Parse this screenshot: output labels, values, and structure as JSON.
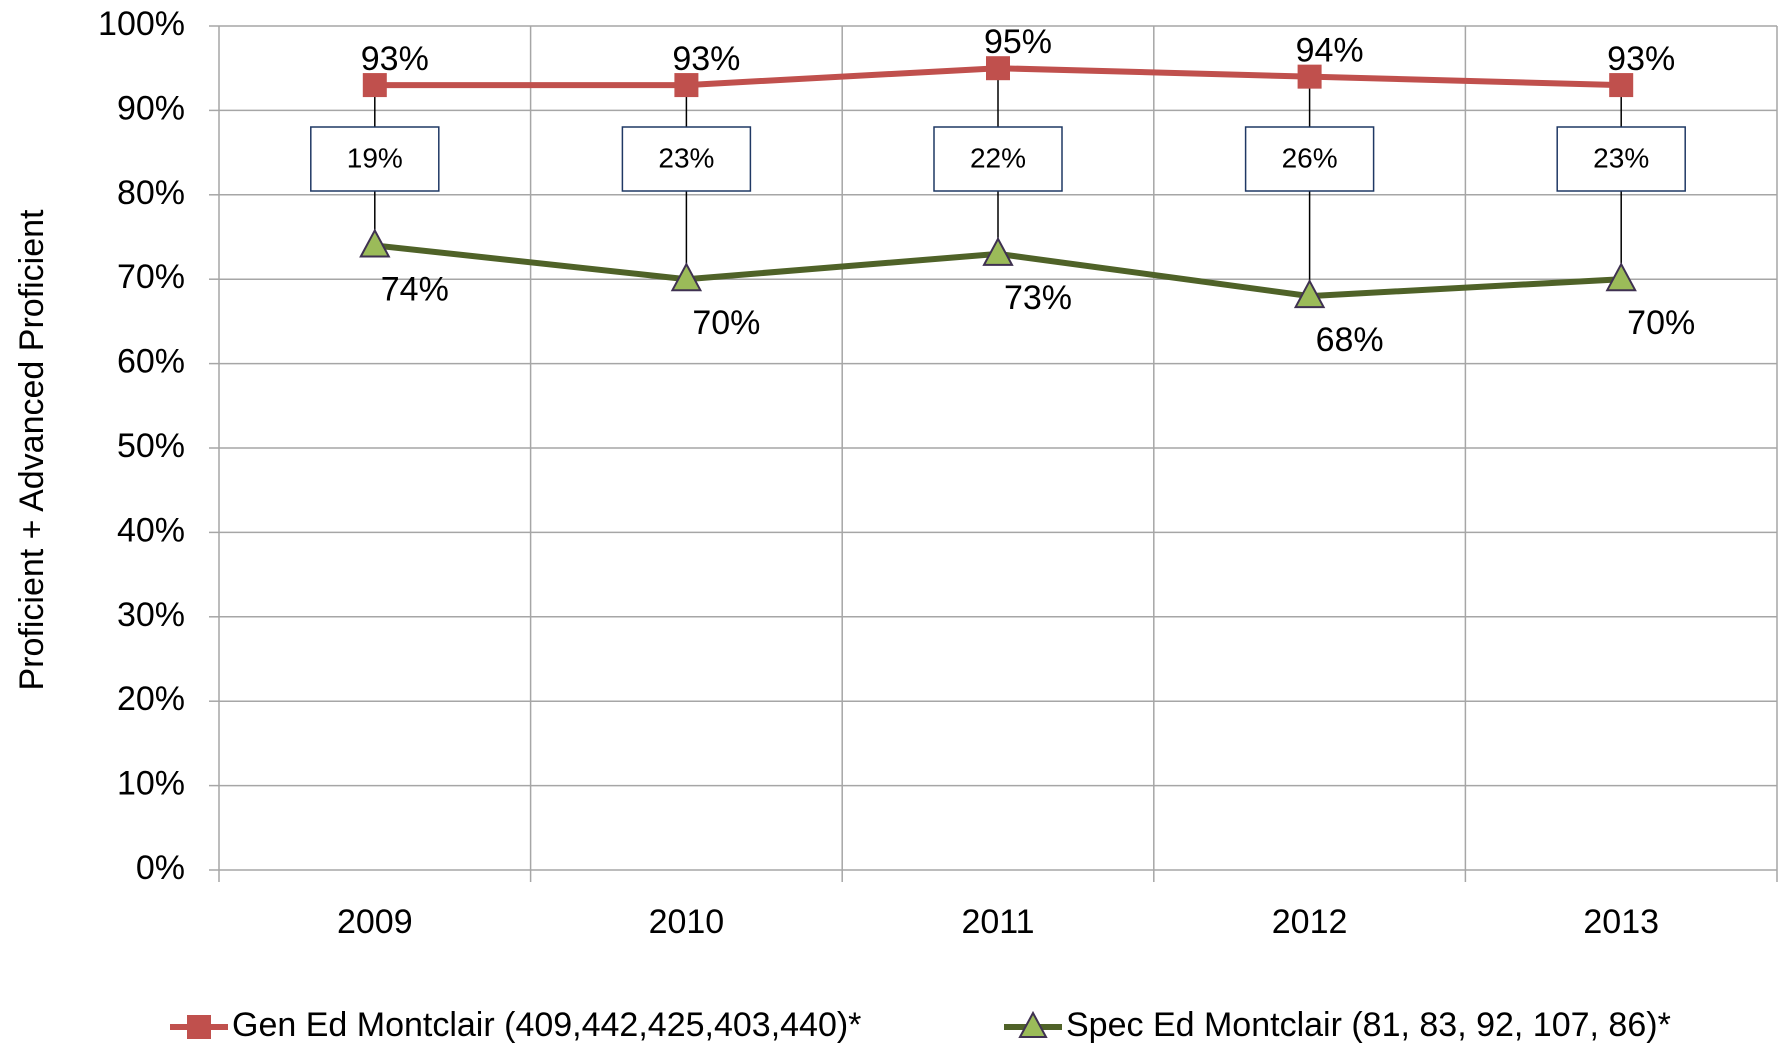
{
  "chart_data": {
    "type": "line",
    "y_axis_label": "Proficient + Advanced Proficient",
    "categories": [
      "2009",
      "2010",
      "2011",
      "2012",
      "2013"
    ],
    "series": [
      {
        "name": "Gen Ed Montclair (409,442,425,403,440)*",
        "color": "#c0504d",
        "marker": "square",
        "values": [
          93,
          93,
          95,
          94,
          93
        ],
        "value_labels": [
          "93%",
          "93%",
          "95%",
          "94%",
          "93%"
        ]
      },
      {
        "name": "Spec Ed Montclair (81, 83, 92, 107, 86)*",
        "color": "#4f6228",
        "marker": "triangle",
        "values": [
          74,
          70,
          73,
          68,
          70
        ],
        "value_labels": [
          "74%",
          "70%",
          "73%",
          "68%",
          "70%"
        ]
      }
    ],
    "gaps": {
      "values": [
        19,
        23,
        22,
        26,
        23
      ],
      "value_labels": [
        "19%",
        "23%",
        "22%",
        "26%",
        "23%"
      ]
    },
    "ylim": [
      0,
      100
    ],
    "yticks": [
      {
        "value": 0,
        "label": "0%"
      },
      {
        "value": 10,
        "label": "10%"
      },
      {
        "value": 20,
        "label": "20%"
      },
      {
        "value": 30,
        "label": "30%"
      },
      {
        "value": 40,
        "label": "40%"
      },
      {
        "value": 50,
        "label": "50%"
      },
      {
        "value": 60,
        "label": "60%"
      },
      {
        "value": 70,
        "label": "70%"
      },
      {
        "value": 80,
        "label": "80%"
      },
      {
        "value": 90,
        "label": "90%"
      },
      {
        "value": 100,
        "label": "100%"
      }
    ],
    "grid": true,
    "legend": "bottom"
  }
}
